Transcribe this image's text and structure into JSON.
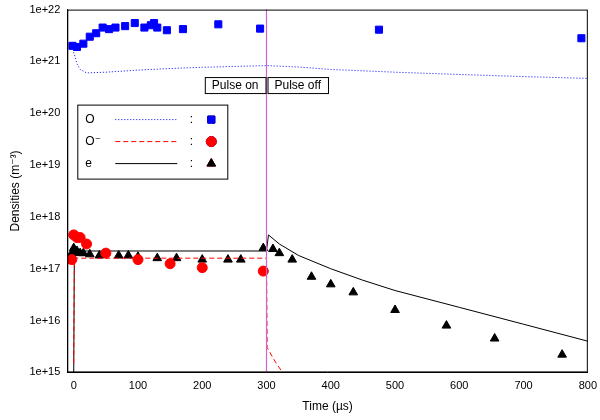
{
  "chart_data": {
    "type": "scatter",
    "x_label": "Time (µs)",
    "y_label": "Densities (m⁻³)",
    "xlim": [
      -10,
      800
    ],
    "xticks": [
      0,
      100,
      200,
      300,
      400,
      500,
      600,
      700,
      800
    ],
    "ylim": [
      1000000000000000.0,
      1e+22
    ],
    "yticks": [
      {
        "value": 1000000000000000.0,
        "label": "1e+15"
      },
      {
        "value": 1e+16,
        "label": "1e+16"
      },
      {
        "value": 1e+17,
        "label": "1e+17"
      },
      {
        "value": 1e+18,
        "label": "1e+18"
      },
      {
        "value": 1e+19,
        "label": "1e+19"
      },
      {
        "value": 1e+20,
        "label": "1e+20"
      },
      {
        "value": 1e+21,
        "label": "1e+21"
      },
      {
        "value": 1e+22,
        "label": "1e+22"
      }
    ],
    "log": "y",
    "grid": false,
    "legend": "upper left",
    "legend_separator": ":",
    "series": [
      {
        "name": "O",
        "color": "#0000ff",
        "line_style": "dotted",
        "marker": "square",
        "model": {
          "x": [
            0,
            5,
            10,
            20,
            50,
            100,
            150,
            200,
            250,
            300,
            350,
            400,
            500,
            600,
            700,
            800
          ],
          "values": [
            1.5e+21,
            9e+20,
            7e+20,
            6e+20,
            6.2e+20,
            6.8e+20,
            7.3e+20,
            7.7e+20,
            8e+20,
            8.3e+20,
            7.8e+20,
            7e+20,
            6.2e+20,
            5.6e+20,
            5.1e+20,
            4.7e+20
          ]
        },
        "measurements": {
          "x": [
            -2,
            5,
            15,
            25,
            35,
            45,
            55,
            65,
            80,
            95,
            110,
            120,
            125,
            130,
            145,
            170,
            225,
            290,
            475,
            790
          ],
          "values": [
            2e+21,
            1.9e+21,
            2.2e+21,
            3e+21,
            3.5e+21,
            4.5e+21,
            4.2e+21,
            4.5e+21,
            4.8e+21,
            5.5e+21,
            4.5e+21,
            5e+21,
            5.5e+21,
            4.5e+21,
            4e+21,
            4.2e+21,
            5.2e+21,
            4.3e+21,
            4.1e+21,
            2.8e+21
          ]
        }
      },
      {
        "name": "O⁻",
        "color": "#ff0000",
        "line_style": "dashed",
        "marker": "circle",
        "model": {
          "x": [
            0,
            1,
            300,
            301,
            315,
            325
          ],
          "values": [
            1500000000000000.0,
            1.6e+17,
            1.6e+17,
            3000000000000000.0,
            1500000000000000.0,
            1000000000000000.0
          ]
        },
        "measurements": {
          "x": [
            -3,
            0,
            5,
            10,
            20,
            50,
            100,
            150,
            200,
            295
          ],
          "values": [
            1.5e+17,
            4.5e+17,
            4e+17,
            4e+17,
            3e+17,
            2e+17,
            1.5e+17,
            1.25e+17,
            1.05e+17,
            9e+16
          ]
        }
      },
      {
        "name": "e",
        "color": "#000000",
        "line_style": "solid",
        "marker": "triangle",
        "model": {
          "x": [
            0,
            1,
            300,
            303,
            320,
            350,
            400,
            450,
            500,
            600,
            700,
            800
          ],
          "values": [
            1000000000000000.0,
            2.2e+17,
            2.2e+17,
            4.5e+17,
            3e+17,
            1.8e+17,
            1e+17,
            6e+16,
            3.8e+16,
            1.8e+16,
            8500000000000000.0,
            4000000000000000.0
          ]
        },
        "measurements": {
          "x": [
            -3,
            0,
            5,
            10,
            15,
            25,
            40,
            70,
            85,
            100,
            130,
            160,
            200,
            240,
            260,
            295,
            310,
            320,
            340,
            370,
            400,
            435,
            500,
            580,
            655,
            760
          ],
          "values": [
            2e+17,
            2.5e+17,
            2.2e+17,
            2e+17,
            2e+17,
            1.9e+17,
            1.8e+17,
            1.8e+17,
            1.8e+17,
            1.7e+17,
            1.6e+17,
            1.6e+17,
            1.5e+17,
            1.5e+17,
            1.5e+17,
            2.5e+17,
            2.4e+17,
            2e+17,
            1.5e+17,
            7e+16,
            5e+16,
            3.5e+16,
            1.6e+16,
            8000000000000000.0,
            4500000000000000.0,
            2200000000000000.0
          ]
        }
      }
    ],
    "annotations": [
      {
        "type": "vline",
        "x": 300,
        "color": "#cc66cc"
      },
      {
        "type": "box",
        "text": "Pulse on",
        "x": 300,
        "y": 3.5e+20
      },
      {
        "type": "box",
        "text": "Pulse off",
        "x": 300,
        "y": 3.5e+20
      }
    ]
  }
}
